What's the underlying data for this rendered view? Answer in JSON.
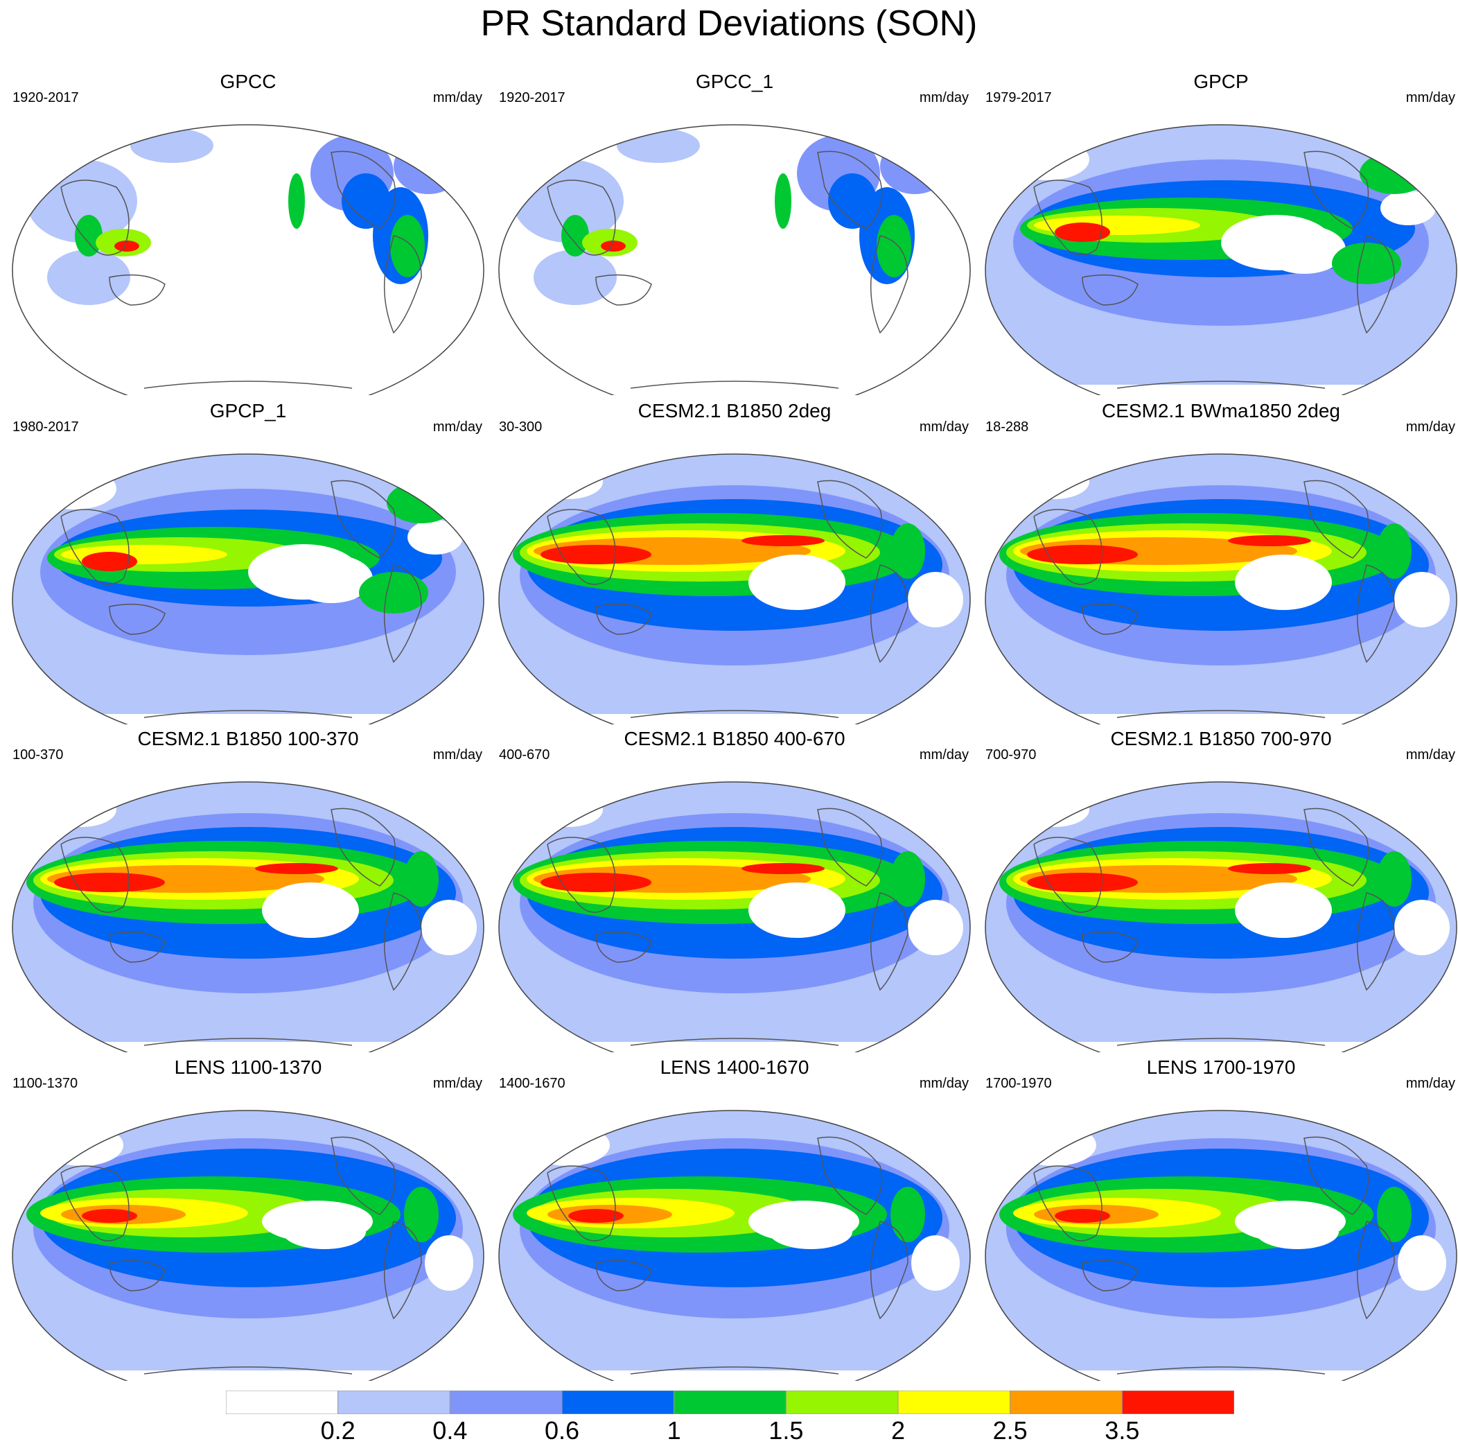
{
  "title": "PR Standard Deviations (SON)",
  "colors": [
    "#ffffff",
    "#b4c6fa",
    "#8095fa",
    "#0064f5",
    "#00c832",
    "#96f500",
    "#ffff00",
    "#ff9b00",
    "#ff1400"
  ],
  "colorbar_labels": [
    "0.2",
    "0.4",
    "0.6",
    "1",
    "1.5",
    "2",
    "2.5",
    "3.5"
  ],
  "panels": [
    {
      "title": "GPCC",
      "period": "1920-2017",
      "units": "mm/day",
      "kind": "land"
    },
    {
      "title": "GPCC_1",
      "period": "1920-2017",
      "units": "mm/day",
      "kind": "land"
    },
    {
      "title": "GPCP",
      "period": "1979-2017",
      "units": "mm/day",
      "kind": "obs"
    },
    {
      "title": "GPCP_1",
      "period": "1980-2017",
      "units": "mm/day",
      "kind": "obs"
    },
    {
      "title": "CESM2.1 B1850 2deg",
      "period": "30-300",
      "units": "mm/day",
      "kind": "model"
    },
    {
      "title": "CESM2.1 BWma1850 2deg",
      "period": "18-288",
      "units": "mm/day",
      "kind": "model"
    },
    {
      "title": "CESM2.1 B1850 100-370",
      "period": "100-370",
      "units": "mm/day",
      "kind": "model"
    },
    {
      "title": "CESM2.1 B1850 400-670",
      "period": "400-670",
      "units": "mm/day",
      "kind": "model"
    },
    {
      "title": "CESM2.1 B1850 700-970",
      "period": "700-970",
      "units": "mm/day",
      "kind": "model"
    },
    {
      "title": "LENS 1100-1370",
      "period": "1100-1370",
      "units": "mm/day",
      "kind": "lens"
    },
    {
      "title": "LENS 1400-1670",
      "period": "1400-1670",
      "units": "mm/day",
      "kind": "lens"
    },
    {
      "title": "LENS 1700-1970",
      "period": "1700-1970",
      "units": "mm/day",
      "kind": "lens"
    }
  ]
}
